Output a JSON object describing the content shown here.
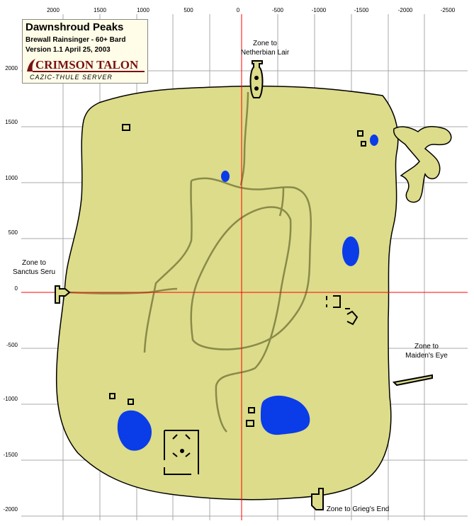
{
  "title": "Dawnshroud Peaks",
  "author": "Brewall Rainsinger - 60+ Bard",
  "version": "Version 1.1 April 25, 2003",
  "logo_text": "CRIMSON TALON",
  "server": "CAZIC-THULE SERVER",
  "colors": {
    "land": "#dcdc8a",
    "water": "#0a3ce8",
    "grid": "#a8a8a8",
    "axis": "#ff0000",
    "path": "#8a8a4a",
    "outline": "#000000"
  },
  "x_ticks": [
    "2000",
    "1500",
    "1000",
    "500",
    "0",
    "-500",
    "-1000",
    "-1500",
    "-2000",
    "-2500"
  ],
  "y_ticks": [
    "2000",
    "1500",
    "1000",
    "500",
    "0",
    "-500",
    "-1000",
    "-1500",
    "-2000"
  ],
  "zones": {
    "north": [
      "Zone to",
      "Netherbian Lair"
    ],
    "west": [
      "Zone to",
      "Sanctus Seru"
    ],
    "east": [
      "Zone to",
      "Maiden's Eye"
    ],
    "south": "Zone to Grieg's End"
  }
}
